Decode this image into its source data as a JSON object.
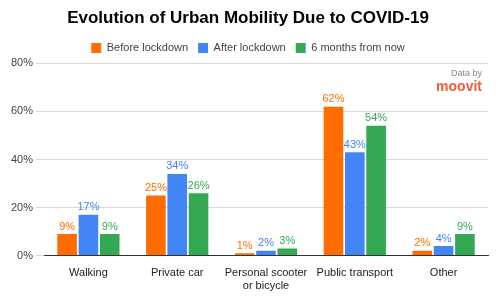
{
  "chart_data": {
    "type": "bar",
    "title": "Evolution of Urban Mobility Due to COVID-19",
    "categories": [
      "Walking",
      "Private car",
      "Personal scooter or bicycle",
      "Public transport",
      "Other"
    ],
    "series": [
      {
        "name": "Before lockdown",
        "color": "#ff6d01",
        "values": [
          9,
          25,
          1,
          62,
          2
        ],
        "value_labels": [
          "9%",
          "25%",
          "1%",
          "62%",
          "2%"
        ]
      },
      {
        "name": "After lockdown",
        "color": "#4285f4",
        "values": [
          17,
          34,
          2,
          43,
          4
        ],
        "value_labels": [
          "17%",
          "34%",
          "2%",
          "43%",
          "4%"
        ]
      },
      {
        "name": "6 months from now",
        "color": "#34a853",
        "values": [
          9,
          26,
          3,
          54,
          9
        ],
        "value_labels": [
          "9%",
          "26%",
          "3%",
          "54%",
          "9%"
        ]
      }
    ],
    "ylim": [
      0,
      80
    ],
    "yticks": [
      {
        "value": 0,
        "label": "0%"
      },
      {
        "value": 20,
        "label": "20%"
      },
      {
        "value": 40,
        "label": "40%"
      },
      {
        "value": 60,
        "label": "60%"
      },
      {
        "value": 80,
        "label": "80%"
      }
    ],
    "grid": true,
    "legend": "top",
    "data_labels": true,
    "annotations": [
      "Data by",
      "moovit"
    ]
  }
}
